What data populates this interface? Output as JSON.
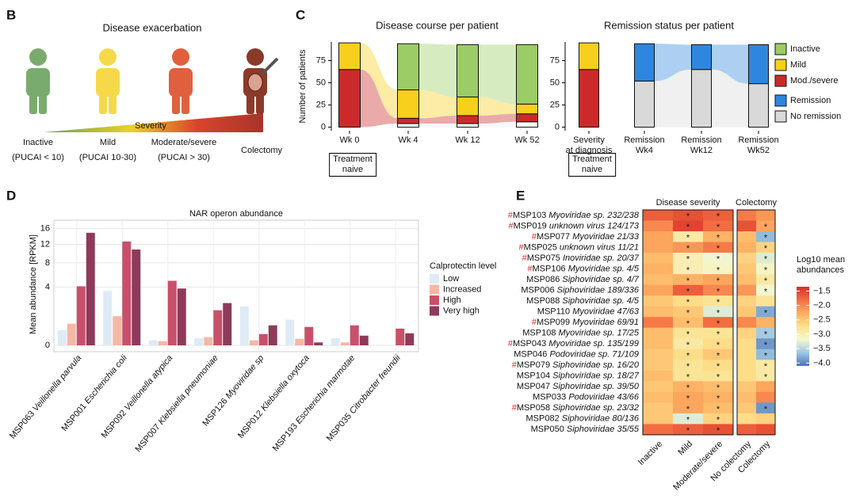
{
  "panel_b": {
    "label": "B",
    "title": "Disease exacerbation",
    "scale_label": "Severity",
    "stages": [
      {
        "name": "Inactive",
        "criterion": "(PUCAI < 10)"
      },
      {
        "name": "Mild",
        "criterion": "(PUCAI 10-30)"
      },
      {
        "name": "Moderate/severe",
        "criterion": "(PUCAI > 30)"
      },
      {
        "name": "Colectomy"
      }
    ]
  },
  "chart_data": [
    {
      "type": "stacked-bar",
      "panel": "C",
      "title": "Disease course per patient",
      "y_label": "Number of patients",
      "categories": [
        "Wk 0",
        "Wk 4",
        "Wk 12",
        "Wk 52"
      ],
      "annotation": "Treatment\nnaive",
      "ylim": [
        -4,
        96
      ],
      "yticks": [
        0,
        25,
        50,
        75
      ],
      "series": [
        {
          "color": "#ffffff",
          "values": [
            0,
            4,
            4,
            6
          ]
        },
        {
          "name": "Mod./severe",
          "color": "#cc2a2a",
          "values": [
            65,
            6,
            9,
            9
          ]
        },
        {
          "name": "Mild",
          "color": "#f7cf1d",
          "values": [
            30,
            32,
            21,
            11
          ]
        },
        {
          "name": "Inactive",
          "color": "#9ccc65",
          "values": [
            0,
            52,
            59,
            67
          ]
        }
      ]
    },
    {
      "type": "stacked-bar",
      "title": "Remission status per patient",
      "categories": [
        "Severity\nat diagnosis",
        "Remission\nWk4",
        "Remission\nWk12",
        "Remission\nWk52"
      ],
      "annotation": "Treatment\nnaive",
      "ylim": [
        -4,
        96
      ],
      "yticks": [
        0,
        25,
        50,
        75
      ],
      "series": [
        {
          "color": "#cc2a2a",
          "values": [
            65,
            null,
            null,
            null
          ]
        },
        {
          "color": "#f7cf1d",
          "values": [
            30,
            null,
            null,
            null
          ]
        },
        {
          "name": "No remission",
          "color": "#d9d9d9",
          "values": [
            null,
            52,
            65,
            49
          ]
        },
        {
          "name": "Remission",
          "color": "#2f86de",
          "values": [
            null,
            42,
            28,
            44
          ]
        }
      ]
    },
    {
      "type": "grouped-bar",
      "panel": "D",
      "title": "NAR operon abundance",
      "y_label": "Mean abundance [RPKM]",
      "y_scale": "sqrt",
      "ylim": [
        0,
        17.5
      ],
      "yticks": [
        0,
        4,
        8,
        12,
        16
      ],
      "grid": true,
      "legend_title": "Calprotectin level",
      "categories": [
        "MSP063 Veillonella parvula",
        "MSP001 Escherichia coli",
        "MSP092 Veillonella atypica",
        "MSP007 Klebsiella pneumoniae",
        "MSP126 Myoviridae sp",
        "MSP012 Klebsiella oxytoca",
        "MSP193 Escherichia marmotae",
        "MSP035 Citrobacter freundii"
      ],
      "series": [
        {
          "name": "Low",
          "color": "#deebf5",
          "values": [
            0.27,
            3.5,
            0.03,
            0.06,
            1.8,
            0.77,
            0.06,
            0
          ]
        },
        {
          "name": "Increased",
          "color": "#f4b8a5",
          "values": [
            0.55,
            1.0,
            0.02,
            0.08,
            0.03,
            0.05,
            0.01,
            0
          ]
        },
        {
          "name": "High",
          "color": "#c9506a",
          "values": [
            4.1,
            12.7,
            4.9,
            1.45,
            0.15,
            0.4,
            0.47,
            0.33
          ]
        },
        {
          "name": "Very high",
          "color": "#8e3a5b",
          "values": [
            14.9,
            10.8,
            3.8,
            2.1,
            0.47,
            0.01,
            0.11,
            0.17
          ]
        }
      ]
    },
    {
      "type": "heatmap",
      "panel": "E",
      "column_groups": [
        {
          "label": "Disease severity",
          "columns": [
            "Inactive",
            "Mild",
            "Moderate/severe"
          ]
        },
        {
          "label": "Colectomy",
          "columns": [
            "No colectomy",
            "Colectomy"
          ]
        }
      ],
      "rows": [
        "#MSP103 Myoviridae sp. 232/238",
        "#MSP019 unknown virus 124/173",
        "#MSP077 Myoviridae 21/33",
        "#MSP025 unknown virus 11/21",
        "#MSP075 Inoviridae sp. 20/37",
        "#MSP106 Myoviridae sp. 4/5",
        "MSP086 Siphoviridae sp. 4/7",
        "MSP006 Siphoviridae 189/336",
        "MSP088 Siphoviridae sp. 4/5",
        "MSP110 Myoviridae 47/63",
        "#MSP099 Myoviridae 69/91",
        "MSP108 Myoviridae sp. 17/25",
        "#MSP043 Myoviridae sp. 135/199",
        "MSP046 Podoviridae sp. 71/109",
        "#MSP079 Siphoviridae sp. 16/20",
        "MSP104 Siphoviridae sp. 18/27",
        "MSP047 Siphoviridae sp. 39/50",
        "MSP033 Podoviridae 43/66",
        "#MSP058 Siphoviridae sp. 23/32",
        "MSP082 Siphoviridae 80/136",
        "MSP050 Siphoviridae 35/55"
      ],
      "values": [
        [
          -1.7,
          -1.6,
          -1.7,
          -1.9,
          -2.1
        ],
        [
          -2.0,
          -1.5,
          -1.8,
          -1.6,
          -2.2
        ],
        [
          -2.2,
          -2.9,
          -2.3,
          -2.4,
          -3.7
        ],
        [
          -2.2,
          -2.1,
          -1.9,
          -2.3,
          -2.6
        ],
        [
          -2.4,
          -3.0,
          -3.2,
          -2.6,
          -3.3
        ],
        [
          -2.3,
          -3.0,
          -3.1,
          -2.5,
          -3.1
        ],
        [
          -2.4,
          -2.3,
          -2.2,
          -2.4,
          -2.9
        ],
        [
          -2.2,
          -1.7,
          -2.0,
          -2.1,
          -3.2
        ],
        [
          -2.5,
          -2.7,
          -2.8,
          -2.6,
          -2.8
        ],
        [
          -2.4,
          -2.5,
          -3.3,
          -2.5,
          -3.8
        ],
        [
          -1.9,
          -2.4,
          -1.8,
          -2.0,
          -2.3
        ],
        [
          -2.4,
          -2.8,
          -2.8,
          -2.6,
          -3.6
        ],
        [
          -2.4,
          -2.9,
          -2.7,
          -2.7,
          -3.9
        ],
        [
          -2.5,
          -2.7,
          -2.5,
          -2.7,
          -3.7
        ],
        [
          -2.5,
          -2.8,
          -2.7,
          -2.7,
          -2.9
        ],
        [
          -2.4,
          -2.8,
          -2.8,
          -2.7,
          -2.9
        ],
        [
          -2.5,
          -2.3,
          -2.4,
          -2.5,
          -2.2
        ],
        [
          -2.4,
          -2.2,
          -2.3,
          -2.4,
          -2.0
        ],
        [
          -2.5,
          -2.2,
          -2.4,
          -2.5,
          -3.9
        ],
        [
          -2.5,
          -3.3,
          -2.6,
          -2.7,
          -2.6
        ],
        [
          -1.8,
          -1.7,
          -1.6,
          -1.7,
          -1.6
        ]
      ],
      "stars": [
        [
          null,
          "*",
          "*",
          null,
          null
        ],
        [
          null,
          "*",
          "*",
          null,
          "*"
        ],
        [
          null,
          "*",
          "*",
          null,
          "*"
        ],
        [
          null,
          "*",
          "*",
          null,
          "*"
        ],
        [
          null,
          "*",
          "*",
          null,
          "*"
        ],
        [
          null,
          "*",
          "*",
          null,
          "*"
        ],
        [
          null,
          "*",
          "*",
          null,
          "*"
        ],
        [
          null,
          "*",
          "*",
          null,
          "*"
        ],
        [
          null,
          "*",
          "*",
          null,
          null
        ],
        [
          null,
          "*",
          "*",
          null,
          "*"
        ],
        [
          null,
          "*",
          "*",
          null,
          null
        ],
        [
          null,
          "*",
          "*",
          null,
          "*"
        ],
        [
          null,
          "*",
          "*",
          null,
          "*"
        ],
        [
          null,
          "*",
          "*",
          null,
          "*"
        ],
        [
          null,
          "*",
          "*",
          null,
          "*"
        ],
        [
          null,
          "*",
          "*",
          null,
          "*"
        ],
        [
          null,
          "*",
          "*",
          null,
          null
        ],
        [
          null,
          "*",
          "*",
          null,
          null
        ],
        [
          null,
          "*",
          "*",
          null,
          "*"
        ],
        [
          null,
          "*",
          "*",
          null,
          null
        ],
        [
          null,
          "*",
          "*",
          null,
          null
        ]
      ],
      "clim": [
        -4.1,
        -1.35
      ],
      "colorscale": [
        "#4a74b4",
        "#9ec7e2",
        "#f4f8d0",
        "#fee08b",
        "#fdae61",
        "#f46d43",
        "#d73027"
      ],
      "colorbar_title": "Log10 mean\nabundances",
      "colorbar_ticks": [
        {
          "value": -1.5,
          "label": "−1.5"
        },
        {
          "value": -2.0,
          "label": "−2.0"
        },
        {
          "value": -2.5,
          "label": "−2.5"
        },
        {
          "value": -3.0,
          "label": "−3.0"
        },
        {
          "value": -3.5,
          "label": "−3.5"
        },
        {
          "value": -4.0,
          "label": "−4.0"
        }
      ]
    }
  ]
}
